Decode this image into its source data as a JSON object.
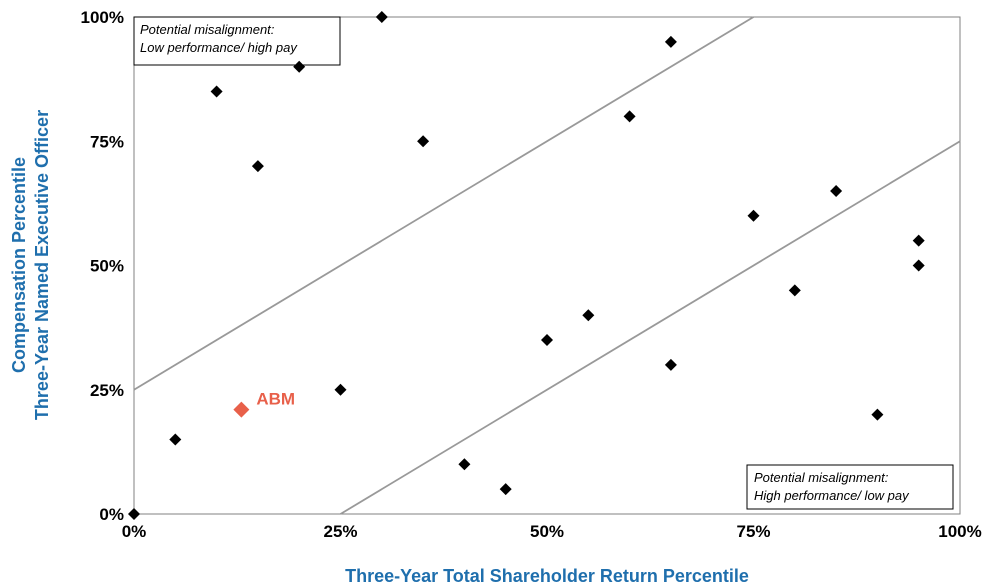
{
  "chart_data": {
    "type": "scatter",
    "xlabel": "Three-Year Total Shareholder Return Percentile",
    "ylabel_lines": [
      "Compensation Percentile",
      "Three-Year Named Executive Officer"
    ],
    "xlim": [
      0,
      1
    ],
    "ylim": [
      0,
      1
    ],
    "x_ticks": [
      "0%",
      "25%",
      "50%",
      "75%",
      "100%"
    ],
    "y_ticks": [
      "0%",
      "25%",
      "50%",
      "75%",
      "100%"
    ],
    "grid": false,
    "annotations": {
      "top_left": [
        "Potential misalignment:",
        "Low performance/ high pay"
      ],
      "bottom_right": [
        "Potential misalignment:",
        "High performance/ low pay"
      ]
    },
    "reference_lines": [
      {
        "x1": 0,
        "y1": 0.25,
        "x2": 0.75,
        "y2": 1.0
      },
      {
        "x1": 0.25,
        "y1": 0,
        "x2": 1.0,
        "y2": 0.75
      }
    ],
    "marker_color": "#000000",
    "line_color": "#999999",
    "points": [
      {
        "x": 0.0,
        "y": 0.0
      },
      {
        "x": 0.05,
        "y": 0.15
      },
      {
        "x": 0.1,
        "y": 0.85
      },
      {
        "x": 0.15,
        "y": 0.7
      },
      {
        "x": 0.2,
        "y": 0.9
      },
      {
        "x": 0.25,
        "y": 0.25
      },
      {
        "x": 0.3,
        "y": 1.0
      },
      {
        "x": 0.35,
        "y": 0.75
      },
      {
        "x": 0.4,
        "y": 0.1
      },
      {
        "x": 0.45,
        "y": 0.05
      },
      {
        "x": 0.5,
        "y": 0.35
      },
      {
        "x": 0.55,
        "y": 0.4
      },
      {
        "x": 0.6,
        "y": 0.8
      },
      {
        "x": 0.65,
        "y": 0.95
      },
      {
        "x": 0.65,
        "y": 0.3
      },
      {
        "x": 0.75,
        "y": 0.6
      },
      {
        "x": 0.8,
        "y": 0.45
      },
      {
        "x": 0.85,
        "y": 0.65
      },
      {
        "x": 0.9,
        "y": 0.2
      },
      {
        "x": 0.95,
        "y": 0.55
      },
      {
        "x": 0.95,
        "y": 0.5
      }
    ],
    "highlight": {
      "label": "ABM",
      "x": 0.13,
      "y": 0.21,
      "color": "#e8604a"
    }
  }
}
